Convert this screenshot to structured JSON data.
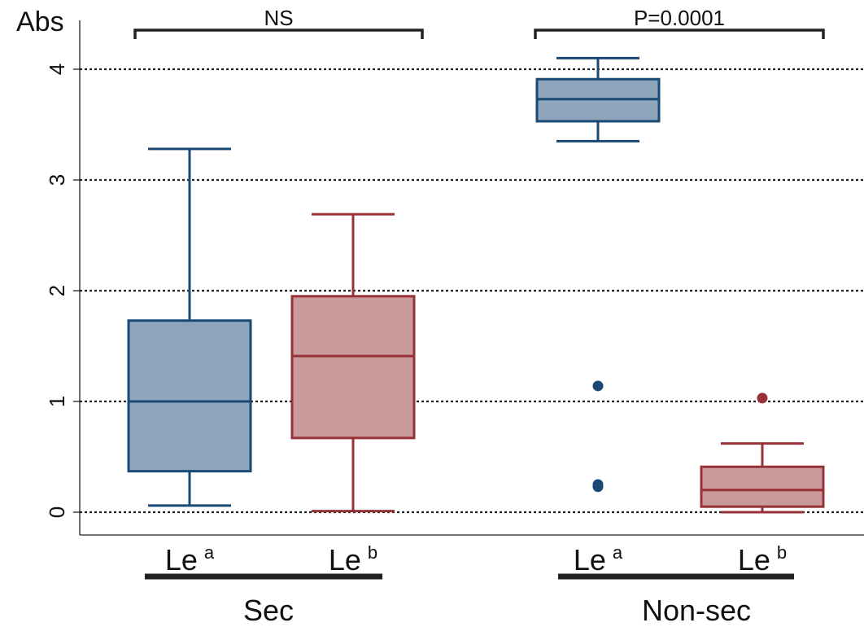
{
  "chart_data": {
    "type": "box",
    "ylabel": "Abs",
    "ylim": [
      0,
      4.2
    ],
    "yticks": [
      0,
      1,
      2,
      3,
      4
    ],
    "grid": "horizontal dotted",
    "colors": {
      "Le a": {
        "fill": "#8ea5bc",
        "stroke": "#1a4a74"
      },
      "Le b": {
        "fill": "#c89a9c",
        "stroke": "#973238"
      }
    },
    "groups": [
      {
        "name": "Sec",
        "comparison": "NS",
        "boxes": [
          {
            "label_main": "Le",
            "label_sup": "a",
            "series": "Le a",
            "whisker_low": 0.06,
            "q1": 0.37,
            "median": 1.0,
            "q3": 1.73,
            "whisker_high": 3.28,
            "outliers": []
          },
          {
            "label_main": "Le",
            "label_sup": "b",
            "series": "Le b",
            "whisker_low": 0.01,
            "q1": 0.67,
            "median": 1.41,
            "q3": 1.95,
            "whisker_high": 2.69,
            "outliers": []
          }
        ]
      },
      {
        "name": "Non-sec",
        "comparison": "P=0.0001",
        "boxes": [
          {
            "label_main": "Le",
            "label_sup": "a",
            "series": "Le a",
            "whisker_low": 3.35,
            "q1": 3.53,
            "median": 3.73,
            "q3": 3.91,
            "whisker_high": 4.1,
            "outliers": [
              1.14,
              0.25,
              0.23
            ]
          },
          {
            "label_main": "Le",
            "label_sup": "b",
            "series": "Le b",
            "whisker_low": 0.0,
            "q1": 0.05,
            "median": 0.2,
            "q3": 0.41,
            "whisker_high": 0.62,
            "outliers": [
              1.03
            ]
          }
        ]
      }
    ]
  }
}
